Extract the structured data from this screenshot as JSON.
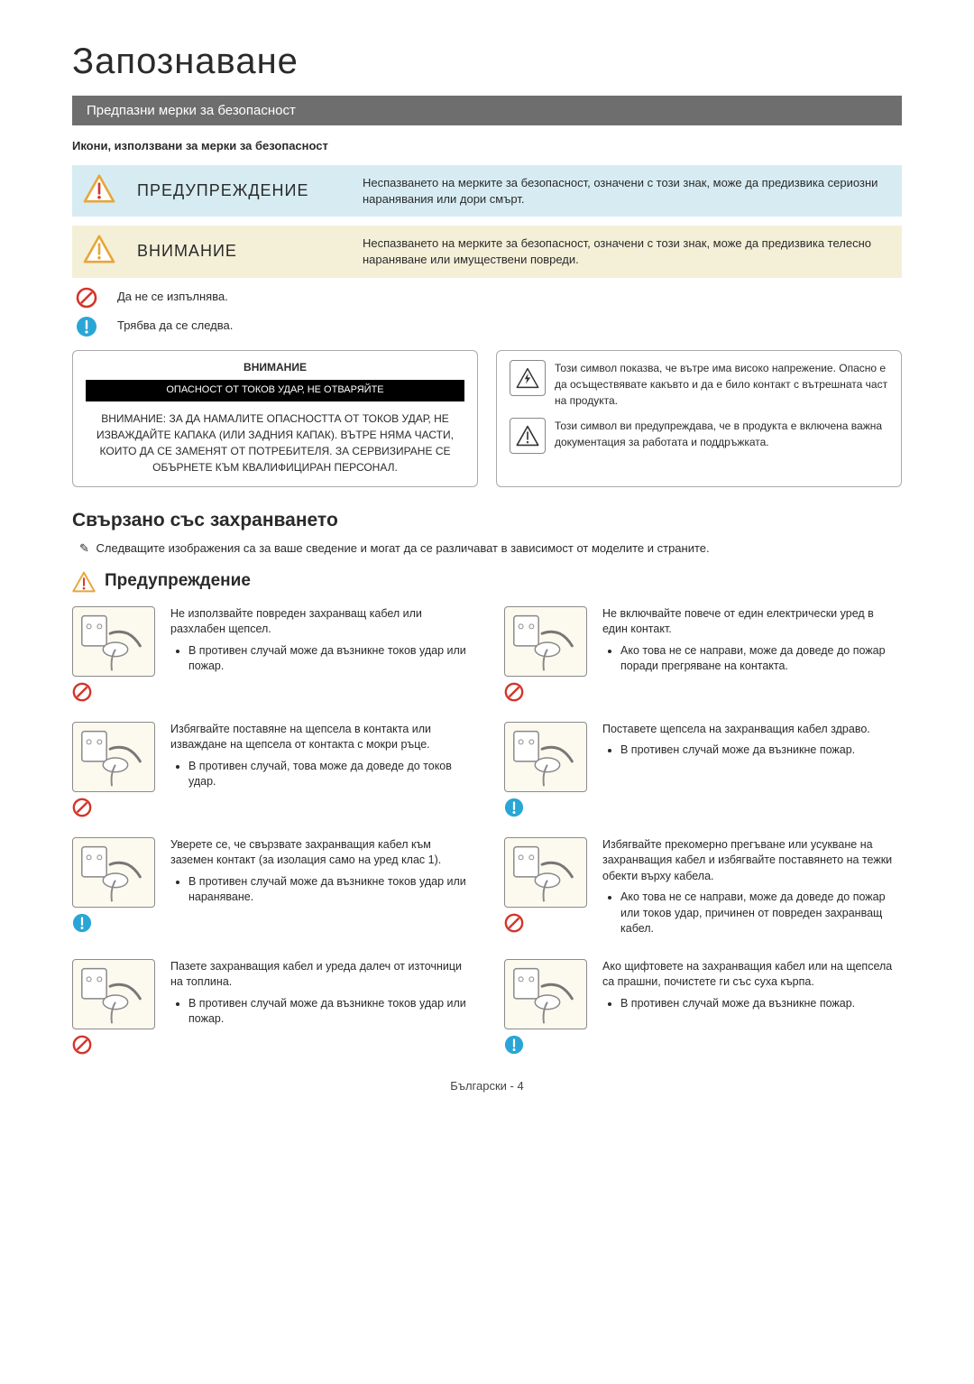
{
  "page": {
    "title": "Запознаване",
    "section_bar": "Предпазни мерки за безопасност",
    "sub_heading": "Икони, използвани за мерки за безопасност",
    "footer_lang": "Български",
    "footer_page": "4"
  },
  "callouts": {
    "warning": {
      "label": "ПРЕДУПРЕЖДЕНИЕ",
      "desc": "Неспазването на мерките за безопасност, означени с този знак, може да предизвика сериозни наранявания или дори смърт.",
      "tri_stroke": "#e7a63a",
      "tri_fill": "#ffffff",
      "bang_color": "#d4352a",
      "bg": "#d7ecf2"
    },
    "caution": {
      "label": "ВНИМАНИЕ",
      "desc": "Неспазването на мерките за безопасност, означени с този знак, може да предизвика телесно нараняване или имуществени повреди.",
      "tri_stroke": "#e7a63a",
      "tri_fill": "#ffffff",
      "bang_color": "#e7a63a",
      "bg": "#f4f0d8"
    }
  },
  "legend": {
    "prohibit": {
      "text": "Да не се изпълнява.",
      "ring": "#d4352a"
    },
    "must": {
      "text": "Трябва да се следва.",
      "circle": "#2aa6d6"
    }
  },
  "boxes": {
    "left": {
      "head": "ВНИМАНИЕ",
      "band": "ОПАСНОСТ ОТ ТОКОВ УДАР, НЕ ОТВАРЯЙТЕ",
      "body": "ВНИМАНИЕ: ЗА ДА НАМАЛИТЕ ОПАСНОСТТА ОТ ТОКОВ УДАР, НЕ ИЗВАЖДАЙТЕ КАПАКА (ИЛИ ЗАДНИЯ КАПАК). ВЪТРЕ НЯМА ЧАСТИ, КОИТО ДА СЕ ЗАМЕНЯТ ОТ ПОТРЕБИТЕЛЯ. ЗА СЕРВИЗИРАНЕ СЕ ОБЪРНЕТЕ КЪМ КВАЛИФИЦИРАН ПЕРСОНАЛ."
    },
    "right": {
      "high_voltage": "Този символ показва, че вътре има високо напрежение. Опасно е да осъществявате какъвто и да е било контакт с вътрешната част на продукта.",
      "doc_notice": "Този символ ви предупреждава, че в продукта е включена важна документация за работата и поддръжката."
    }
  },
  "power_section": {
    "heading": "Свързано със захранването",
    "note": "Следващите изображения са за ваше сведение и могат да се различават в зависимост от моделите и страните.",
    "warn_heading": "Предупреждение",
    "items": [
      {
        "badge": "prohibit",
        "lead": "Не използвайте повреден захранващ кабел или разхлабен щепсел.",
        "bullets": [
          "В противен случай може да възникне токов удар или пожар."
        ]
      },
      {
        "badge": "prohibit",
        "lead": "Не включвайте повече от един електрически уред в един контакт.",
        "bullets": [
          "Ако това не се направи, може да доведе до пожар поради прегряване на контакта."
        ]
      },
      {
        "badge": "prohibit",
        "lead": "Избягвайте поставяне на щепсела в контакта или изваждане на щепсела от контакта с мокри ръце.",
        "bullets": [
          "В противен случай, това може да доведе до токов удар."
        ]
      },
      {
        "badge": "must",
        "lead": "Поставете щепсела на захранващия кабел здраво.",
        "bullets": [
          "В противен случай може да възникне пожар."
        ]
      },
      {
        "badge": "must",
        "lead": "Уверете се, че свързвате захранващия кабел към заземен контакт (за изолация само на уред клас 1).",
        "bullets": [
          "В противен случай може да възникне токов удар или нараняване."
        ]
      },
      {
        "badge": "prohibit",
        "lead": "Избягвайте прекомерно прегъване или усукване на захранващия кабел и избягвайте поставянето на тежки обекти върху кабела.",
        "bullets": [
          "Ако това не се направи, може да доведе до пожар или токов удар, причинен от повреден захранващ кабел."
        ]
      },
      {
        "badge": "prohibit",
        "lead": "Пазете захранващия кабел и уреда далеч от източници на топлина.",
        "bullets": [
          "В противен случай може да възникне токов удар или пожар."
        ]
      },
      {
        "badge": "must",
        "lead": "Ако щифтовете на захранващия кабел или на щепсела са прашни, почистете ги със суха кърпа.",
        "bullets": [
          "В противен случай може да възникне пожар."
        ]
      }
    ]
  },
  "colors": {
    "prohibit_ring": "#d4352a",
    "must_circle": "#2aa6d6"
  }
}
